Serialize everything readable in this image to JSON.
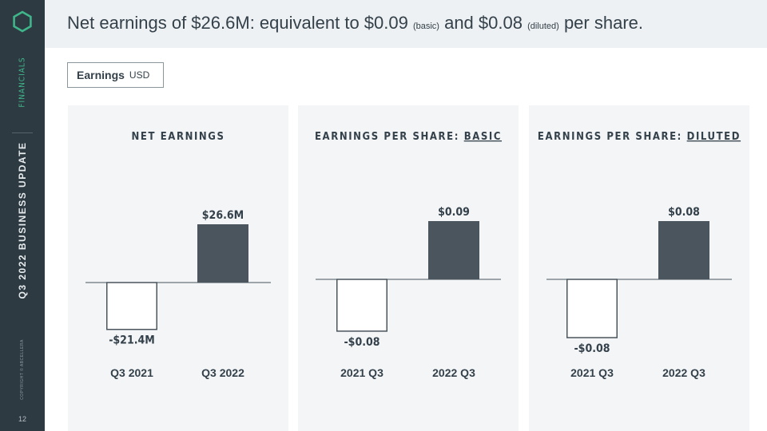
{
  "sidebar": {
    "section_label": "FINANCIALS",
    "deck_title": "Q3 2022 BUSINESS UPDATE",
    "copyright": "COPYRIGHT © ABCELLERA",
    "page_number": "12",
    "logo_icon": "hexagon-logo-icon"
  },
  "header": {
    "part1": "Net earnings of $26.6M: equivalent to $0.09 ",
    "basic_note": "(basic)",
    "part2": " and $0.08 ",
    "diluted_note": "(diluted)",
    "part3": " per share."
  },
  "tag": {
    "main": "Earnings",
    "sub": "USD"
  },
  "colors": {
    "positive_bar": "#4a555d",
    "negative_bar_border": "#4a555d",
    "panel_bg": "#f3f5f7",
    "accent": "#3fb58a"
  },
  "chart_data": [
    {
      "type": "bar",
      "title": "NET EARNINGS",
      "title_underlined": "",
      "categories": [
        "Q3 2021",
        "Q3 2022"
      ],
      "values": [
        -21.4,
        26.6
      ],
      "value_labels": [
        "-$21.4M",
        "$26.6M"
      ],
      "unit": "USD millions"
    },
    {
      "type": "bar",
      "title": "EARNINGS PER SHARE: ",
      "title_underlined": "BASIC",
      "categories": [
        "2021 Q3",
        "2022 Q3"
      ],
      "values": [
        -0.08,
        0.09
      ],
      "value_labels": [
        "-$0.08",
        "$0.09"
      ],
      "unit": "USD per share"
    },
    {
      "type": "bar",
      "title": "EARNINGS PER SHARE: ",
      "title_underlined": "DILUTED",
      "categories": [
        "2021 Q3",
        "2022 Q3"
      ],
      "values": [
        -0.08,
        0.08
      ],
      "value_labels": [
        "-$0.08",
        "$0.08"
      ],
      "unit": "USD per share"
    }
  ]
}
